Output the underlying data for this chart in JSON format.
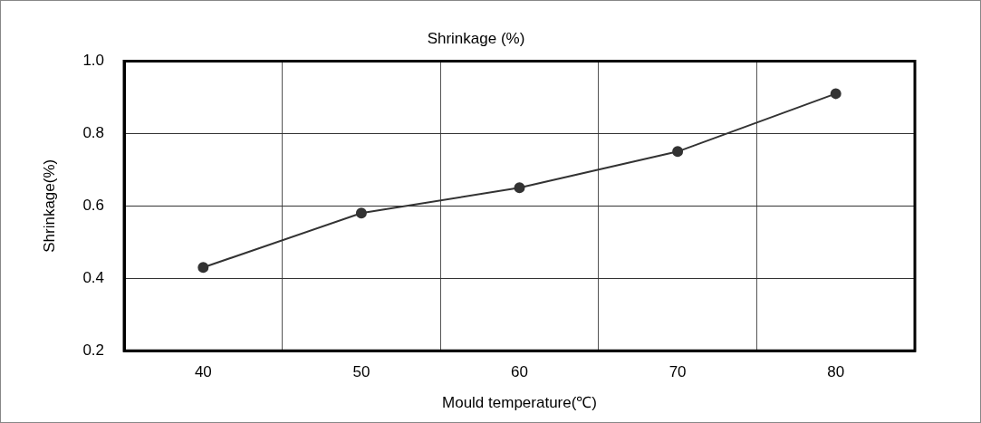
{
  "chart_data": {
    "type": "line",
    "title": "Shrinkage (%)",
    "xlabel": "Mould temperature(℃)",
    "ylabel": "Shrinkage(%)",
    "categories": [
      "40",
      "50",
      "60",
      "70",
      "80"
    ],
    "series": [
      {
        "color": "#333333",
        "values": [
          0.43,
          0.58,
          0.65,
          0.75,
          0.91
        ]
      }
    ],
    "ylim": [
      0.2,
      1.0
    ],
    "yticks": [
      {
        "value": 0.2,
        "label": "0.2"
      },
      {
        "value": 0.4,
        "label": "0.4"
      },
      {
        "value": 0.6,
        "label": "0.6"
      },
      {
        "value": 0.8,
        "label": "0.8"
      },
      {
        "value": 1.0,
        "label": "1.0"
      }
    ],
    "grid": true,
    "legend": false,
    "marker": "circle",
    "line_style": "solid"
  }
}
